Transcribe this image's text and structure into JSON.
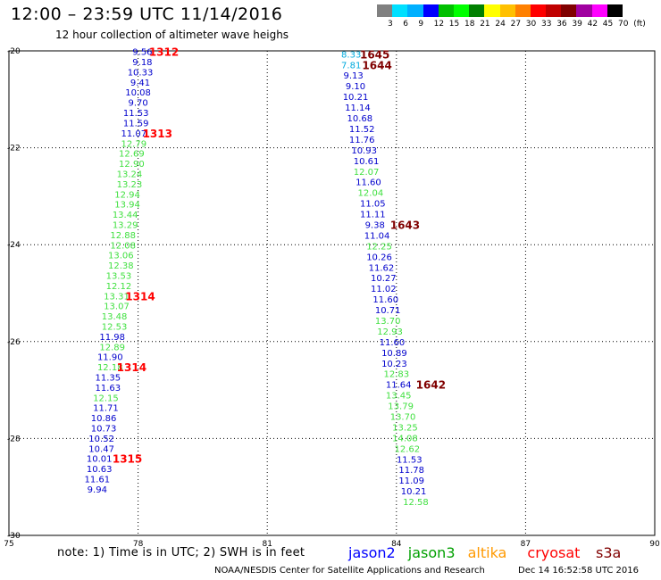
{
  "header": {
    "title": "12:00 – 23:59 UTC 11/14/2016",
    "subtitle": "12 hour collection of altimeter wave heighs"
  },
  "legend": {
    "colors": [
      "#808080",
      "#00e0ff",
      "#00b0ff",
      "#0000ff",
      "#00c000",
      "#00ff00",
      "#008000",
      "#ffff00",
      "#ffc000",
      "#ff8000",
      "#ff0000",
      "#c00000",
      "#800000",
      "#a000a0",
      "#ff00ff",
      "#000000"
    ],
    "labels": [
      "3",
      "6",
      "9",
      "12",
      "15",
      "18",
      "21",
      "24",
      "27",
      "30",
      "33",
      "36",
      "39",
      "42",
      "45",
      "70",
      "(ft)"
    ]
  },
  "footer": {
    "note": "note:  1) Time is in UTC;  2) SWH is in feet",
    "satellites": [
      {
        "name": "jason2",
        "color": "#0000ff"
      },
      {
        "name": "jason3",
        "color": "#00a000"
      },
      {
        "name": "altika",
        "color": "#ff9900"
      },
      {
        "name": "cryosat",
        "color": "#ff0000"
      },
      {
        "name": "s3a",
        "color": "#800000"
      }
    ],
    "credit": "NOAA/NESDIS Center for Satellite Applications and Research",
    "timestamp": "Dec 14 16:52:58 UTC 2016"
  },
  "chart_data": {
    "type": "scatter",
    "xlim": [
      75,
      90
    ],
    "ylim": [
      -30,
      -20
    ],
    "x_ticks": [
      "75",
      "78",
      "81",
      "84",
      "87",
      "90"
    ],
    "y_ticks": [
      "-20",
      "-22",
      "-24",
      "-26",
      "-28",
      "-30"
    ],
    "grid": true,
    "colors": {
      "blue": "#0000cc",
      "green": "#40e040",
      "cyan": "#00aadd",
      "red": "#ff0000",
      "maroon": "#800000"
    },
    "points": [
      {
        "x": 78.1,
        "y": -20.03,
        "v": "9.56",
        "c": "blue"
      },
      {
        "x": 78.1,
        "y": -20.24,
        "v": "9.18",
        "c": "blue"
      },
      {
        "x": 78.05,
        "y": -20.45,
        "v": "10.33",
        "c": "blue"
      },
      {
        "x": 78.05,
        "y": -20.66,
        "v": "9.41",
        "c": "blue"
      },
      {
        "x": 78.0,
        "y": -20.87,
        "v": "10.08",
        "c": "blue"
      },
      {
        "x": 78.0,
        "y": -21.08,
        "v": "9.70",
        "c": "blue"
      },
      {
        "x": 77.95,
        "y": -21.29,
        "v": "11.53",
        "c": "blue"
      },
      {
        "x": 77.95,
        "y": -21.5,
        "v": "11.59",
        "c": "blue"
      },
      {
        "x": 77.9,
        "y": -21.71,
        "v": "11.07",
        "c": "blue"
      },
      {
        "x": 77.9,
        "y": -21.92,
        "v": "12.79",
        "c": "green"
      },
      {
        "x": 77.85,
        "y": -22.13,
        "v": "12.69",
        "c": "green"
      },
      {
        "x": 77.85,
        "y": -22.34,
        "v": "12.90",
        "c": "green"
      },
      {
        "x": 77.8,
        "y": -22.55,
        "v": "13.24",
        "c": "green"
      },
      {
        "x": 77.8,
        "y": -22.76,
        "v": "13.23",
        "c": "green"
      },
      {
        "x": 77.75,
        "y": -22.97,
        "v": "12.94",
        "c": "green"
      },
      {
        "x": 77.75,
        "y": -23.18,
        "v": "13.94",
        "c": "green"
      },
      {
        "x": 77.7,
        "y": -23.39,
        "v": "13.44",
        "c": "green"
      },
      {
        "x": 77.7,
        "y": -23.6,
        "v": "13.29",
        "c": "green"
      },
      {
        "x": 77.65,
        "y": -23.81,
        "v": "12.88",
        "c": "green"
      },
      {
        "x": 77.65,
        "y": -24.02,
        "v": "12.08",
        "c": "green"
      },
      {
        "x": 77.6,
        "y": -24.23,
        "v": "13.06",
        "c": "green"
      },
      {
        "x": 77.6,
        "y": -24.44,
        "v": "12.38",
        "c": "green"
      },
      {
        "x": 77.55,
        "y": -24.65,
        "v": "13.53",
        "c": "green"
      },
      {
        "x": 77.55,
        "y": -24.86,
        "v": "12.12",
        "c": "green"
      },
      {
        "x": 77.5,
        "y": -25.07,
        "v": "13.31",
        "c": "green"
      },
      {
        "x": 77.5,
        "y": -25.28,
        "v": "13.07",
        "c": "green"
      },
      {
        "x": 77.45,
        "y": -25.49,
        "v": "13.48",
        "c": "green"
      },
      {
        "x": 77.45,
        "y": -25.7,
        "v": "12.53",
        "c": "green"
      },
      {
        "x": 77.4,
        "y": -25.91,
        "v": "11.98",
        "c": "blue"
      },
      {
        "x": 77.4,
        "y": -26.12,
        "v": "12.89",
        "c": "green"
      },
      {
        "x": 77.35,
        "y": -26.33,
        "v": "11.90",
        "c": "blue"
      },
      {
        "x": 77.35,
        "y": -26.54,
        "v": "12.18",
        "c": "green"
      },
      {
        "x": 77.3,
        "y": -26.75,
        "v": "11.35",
        "c": "blue"
      },
      {
        "x": 77.3,
        "y": -26.96,
        "v": "11.63",
        "c": "blue"
      },
      {
        "x": 77.25,
        "y": -27.17,
        "v": "12.15",
        "c": "green"
      },
      {
        "x": 77.25,
        "y": -27.38,
        "v": "11.71",
        "c": "blue"
      },
      {
        "x": 77.2,
        "y": -27.59,
        "v": "10.86",
        "c": "blue"
      },
      {
        "x": 77.2,
        "y": -27.8,
        "v": "10.73",
        "c": "blue"
      },
      {
        "x": 77.15,
        "y": -28.01,
        "v": "10.52",
        "c": "blue"
      },
      {
        "x": 77.15,
        "y": -28.22,
        "v": "10.47",
        "c": "blue"
      },
      {
        "x": 77.1,
        "y": -28.43,
        "v": "10.01",
        "c": "blue"
      },
      {
        "x": 77.1,
        "y": -28.64,
        "v": "10.63",
        "c": "blue"
      },
      {
        "x": 77.05,
        "y": -28.85,
        "v": "11.61",
        "c": "blue"
      },
      {
        "x": 77.05,
        "y": -29.06,
        "v": "9.94",
        "c": "blue"
      },
      {
        "x": 82.95,
        "y": -20.08,
        "v": "8.33",
        "c": "cyan"
      },
      {
        "x": 82.95,
        "y": -20.3,
        "v": "7.81",
        "c": "cyan"
      },
      {
        "x": 83.0,
        "y": -20.52,
        "v": "9.13",
        "c": "blue"
      },
      {
        "x": 83.05,
        "y": -20.74,
        "v": "9.10",
        "c": "blue"
      },
      {
        "x": 83.05,
        "y": -20.96,
        "v": "10.21",
        "c": "blue"
      },
      {
        "x": 83.1,
        "y": -21.18,
        "v": "11.14",
        "c": "blue"
      },
      {
        "x": 83.15,
        "y": -21.4,
        "v": "10.68",
        "c": "blue"
      },
      {
        "x": 83.2,
        "y": -21.62,
        "v": "11.52",
        "c": "blue"
      },
      {
        "x": 83.2,
        "y": -21.84,
        "v": "11.76",
        "c": "blue"
      },
      {
        "x": 83.25,
        "y": -22.06,
        "v": "10.93",
        "c": "blue"
      },
      {
        "x": 83.3,
        "y": -22.28,
        "v": "10.61",
        "c": "blue"
      },
      {
        "x": 83.3,
        "y": -22.5,
        "v": "12.07",
        "c": "green"
      },
      {
        "x": 83.35,
        "y": -22.72,
        "v": "11.60",
        "c": "blue"
      },
      {
        "x": 83.4,
        "y": -22.94,
        "v": "12.04",
        "c": "green"
      },
      {
        "x": 83.45,
        "y": -23.16,
        "v": "11.05",
        "c": "blue"
      },
      {
        "x": 83.45,
        "y": -23.38,
        "v": "11.11",
        "c": "blue"
      },
      {
        "x": 83.5,
        "y": -23.6,
        "v": "9.38",
        "c": "blue"
      },
      {
        "x": 83.55,
        "y": -23.82,
        "v": "11.04",
        "c": "blue"
      },
      {
        "x": 83.6,
        "y": -24.04,
        "v": "12.25",
        "c": "green"
      },
      {
        "x": 83.6,
        "y": -24.26,
        "v": "10.26",
        "c": "blue"
      },
      {
        "x": 83.65,
        "y": -24.48,
        "v": "11.62",
        "c": "blue"
      },
      {
        "x": 83.7,
        "y": -24.7,
        "v": "10.27",
        "c": "blue"
      },
      {
        "x": 83.7,
        "y": -24.92,
        "v": "11.02",
        "c": "blue"
      },
      {
        "x": 83.75,
        "y": -25.14,
        "v": "11.60",
        "c": "blue"
      },
      {
        "x": 83.8,
        "y": -25.36,
        "v": "10.71",
        "c": "blue"
      },
      {
        "x": 83.8,
        "y": -25.58,
        "v": "13.70",
        "c": "green"
      },
      {
        "x": 83.85,
        "y": -25.8,
        "v": "12.93",
        "c": "green"
      },
      {
        "x": 83.9,
        "y": -26.02,
        "v": "11.60",
        "c": "blue"
      },
      {
        "x": 83.95,
        "y": -26.24,
        "v": "10.89",
        "c": "blue"
      },
      {
        "x": 83.95,
        "y": -26.46,
        "v": "10.23",
        "c": "blue"
      },
      {
        "x": 84.0,
        "y": -26.68,
        "v": "12.83",
        "c": "green"
      },
      {
        "x": 84.05,
        "y": -26.9,
        "v": "11.64",
        "c": "blue"
      },
      {
        "x": 84.05,
        "y": -27.12,
        "v": "13.45",
        "c": "green"
      },
      {
        "x": 84.1,
        "y": -27.34,
        "v": "13.79",
        "c": "green"
      },
      {
        "x": 84.15,
        "y": -27.56,
        "v": "13.70",
        "c": "green"
      },
      {
        "x": 84.2,
        "y": -27.78,
        "v": "13.25",
        "c": "green"
      },
      {
        "x": 84.2,
        "y": -28.0,
        "v": "14.08",
        "c": "green"
      },
      {
        "x": 84.25,
        "y": -28.22,
        "v": "12.62",
        "c": "green"
      },
      {
        "x": 84.3,
        "y": -28.44,
        "v": "11.53",
        "c": "blue"
      },
      {
        "x": 84.35,
        "y": -28.66,
        "v": "11.78",
        "c": "blue"
      },
      {
        "x": 84.35,
        "y": -28.88,
        "v": "11.09",
        "c": "blue"
      },
      {
        "x": 84.4,
        "y": -29.1,
        "v": "10.21",
        "c": "blue"
      },
      {
        "x": 84.45,
        "y": -29.32,
        "v": "12.58",
        "c": "green"
      }
    ],
    "time_labels": [
      {
        "x": 78.6,
        "y": -20.03,
        "v": "1312",
        "c": "red"
      },
      {
        "x": 78.45,
        "y": -21.71,
        "v": "1313",
        "c": "red"
      },
      {
        "x": 78.05,
        "y": -25.07,
        "v": "1314",
        "c": "red"
      },
      {
        "x": 77.85,
        "y": -26.54,
        "v": "1314",
        "c": "red"
      },
      {
        "x": 77.75,
        "y": -28.43,
        "v": "1315",
        "c": "red"
      },
      {
        "x": 83.5,
        "y": -20.08,
        "v": "1645",
        "c": "maroon"
      },
      {
        "x": 83.55,
        "y": -20.3,
        "v": "1644",
        "c": "maroon"
      },
      {
        "x": 84.2,
        "y": -23.6,
        "v": "1643",
        "c": "maroon"
      },
      {
        "x": 84.8,
        "y": -26.9,
        "v": "1642",
        "c": "maroon"
      }
    ]
  }
}
